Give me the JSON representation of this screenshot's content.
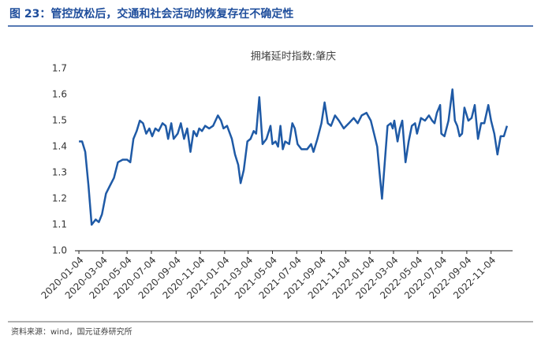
{
  "header": {
    "title": "图 23：管控放松后，交通和社会活动的恢复存在不确定性"
  },
  "chart_data": {
    "type": "line",
    "title": "拥堵延时指数:肇庆",
    "x": [
      "2020-01-04",
      "2020-01-12",
      "2020-01-20",
      "2020-01-28",
      "2020-02-05",
      "2020-02-15",
      "2020-02-23",
      "2020-03-02",
      "2020-03-12",
      "2020-03-22",
      "2020-04-01",
      "2020-04-11",
      "2020-04-23",
      "2020-05-04",
      "2020-05-12",
      "2020-05-20",
      "2020-05-28",
      "2020-06-05",
      "2020-06-13",
      "2020-06-21",
      "2020-06-29",
      "2020-07-06",
      "2020-07-14",
      "2020-07-22",
      "2020-08-01",
      "2020-08-09",
      "2020-08-15",
      "2020-08-23",
      "2020-08-29",
      "2020-09-08",
      "2020-09-16",
      "2020-09-24",
      "2020-10-02",
      "2020-10-10",
      "2020-10-18",
      "2020-10-26",
      "2020-11-01",
      "2020-11-08",
      "2020-11-16",
      "2020-11-26",
      "2020-12-06",
      "2020-12-18",
      "2020-12-26",
      "2021-01-01",
      "2021-01-10",
      "2021-01-22",
      "2021-01-30",
      "2021-02-07",
      "2021-02-13",
      "2021-02-21",
      "2021-03-02",
      "2021-03-10",
      "2021-03-18",
      "2021-03-24",
      "2021-04-01",
      "2021-04-09",
      "2021-04-19",
      "2021-04-29",
      "2021-05-04",
      "2021-05-12",
      "2021-05-18",
      "2021-05-24",
      "2021-05-30",
      "2021-06-05",
      "2021-06-15",
      "2021-06-23",
      "2021-06-29",
      "2021-07-06",
      "2021-07-16",
      "2021-07-30",
      "2021-08-09",
      "2021-08-15",
      "2021-08-25",
      "2021-09-04",
      "2021-09-12",
      "2021-09-20",
      "2021-09-28",
      "2021-10-08",
      "2021-10-18",
      "2021-10-30",
      "2021-11-12",
      "2021-11-24",
      "2021-12-04",
      "2021-12-14",
      "2021-12-26",
      "2022-01-06",
      "2022-01-14",
      "2022-01-22",
      "2022-01-28",
      "2022-02-03",
      "2022-02-09",
      "2022-02-17",
      "2022-02-25",
      "2022-03-02",
      "2022-03-06",
      "2022-03-14",
      "2022-03-20",
      "2022-03-26",
      "2022-04-03",
      "2022-04-11",
      "2022-04-19",
      "2022-04-27",
      "2022-05-02",
      "2022-05-12",
      "2022-05-22",
      "2022-06-01",
      "2022-06-09",
      "2022-06-15",
      "2022-06-21",
      "2022-06-29",
      "2022-07-02",
      "2022-07-10",
      "2022-07-20",
      "2022-07-30",
      "2022-08-05",
      "2022-08-11",
      "2022-08-17",
      "2022-08-23",
      "2022-08-29",
      "2022-09-08",
      "2022-09-16",
      "2022-09-24",
      "2022-10-02",
      "2022-10-10",
      "2022-10-18",
      "2022-10-28",
      "2022-11-04",
      "2022-11-12",
      "2022-11-20",
      "2022-11-28",
      "2022-12-06",
      "2022-12-14"
    ],
    "series": [
      {
        "name": "拥堵延时指数:肇庆",
        "color": "#1f5aa6",
        "values": [
          1.42,
          1.42,
          1.38,
          1.25,
          1.1,
          1.12,
          1.11,
          1.14,
          1.22,
          1.25,
          1.28,
          1.34,
          1.35,
          1.35,
          1.34,
          1.43,
          1.46,
          1.5,
          1.49,
          1.45,
          1.47,
          1.44,
          1.47,
          1.46,
          1.49,
          1.48,
          1.43,
          1.49,
          1.43,
          1.45,
          1.49,
          1.43,
          1.47,
          1.38,
          1.46,
          1.44,
          1.47,
          1.46,
          1.48,
          1.47,
          1.48,
          1.52,
          1.5,
          1.47,
          1.48,
          1.43,
          1.37,
          1.33,
          1.26,
          1.31,
          1.42,
          1.43,
          1.46,
          1.45,
          1.59,
          1.41,
          1.43,
          1.48,
          1.41,
          1.42,
          1.4,
          1.48,
          1.39,
          1.42,
          1.41,
          1.49,
          1.47,
          1.41,
          1.39,
          1.39,
          1.41,
          1.38,
          1.43,
          1.49,
          1.57,
          1.49,
          1.48,
          1.52,
          1.5,
          1.47,
          1.49,
          1.51,
          1.49,
          1.52,
          1.53,
          1.5,
          1.45,
          1.4,
          1.3,
          1.2,
          1.32,
          1.48,
          1.49,
          1.47,
          1.5,
          1.42,
          1.47,
          1.5,
          1.34,
          1.42,
          1.48,
          1.49,
          1.45,
          1.51,
          1.5,
          1.52,
          1.5,
          1.49,
          1.53,
          1.56,
          1.45,
          1.44,
          1.5,
          1.62,
          1.5,
          1.48,
          1.44,
          1.45,
          1.55,
          1.5,
          1.51,
          1.56,
          1.43,
          1.49,
          1.49,
          1.56,
          1.5,
          1.45,
          1.37,
          1.44,
          1.44,
          1.48
        ]
      }
    ],
    "xlim": [
      "2019-12-25",
      "2022-12-28"
    ],
    "xticks": [
      "2020-01-04",
      "2020-03-04",
      "2020-05-04",
      "2020-07-04",
      "2020-09-04",
      "2020-11-04",
      "2021-01-04",
      "2021-03-04",
      "2021-05-04",
      "2021-07-04",
      "2021-09-04",
      "2021-11-04",
      "2022-01-04",
      "2022-03-04",
      "2022-05-04",
      "2022-07-04",
      "2022-09-04",
      "2022-11-04"
    ],
    "ylim": [
      1.0,
      1.7
    ],
    "yticks": [
      {
        "value": 1.0,
        "label": "1.0"
      },
      1.1,
      1.2,
      1.3,
      1.4,
      1.5,
      1.6,
      1.7
    ],
    "grid": false
  },
  "footer": {
    "source": "资料来源：wind，国元证券研究所"
  }
}
